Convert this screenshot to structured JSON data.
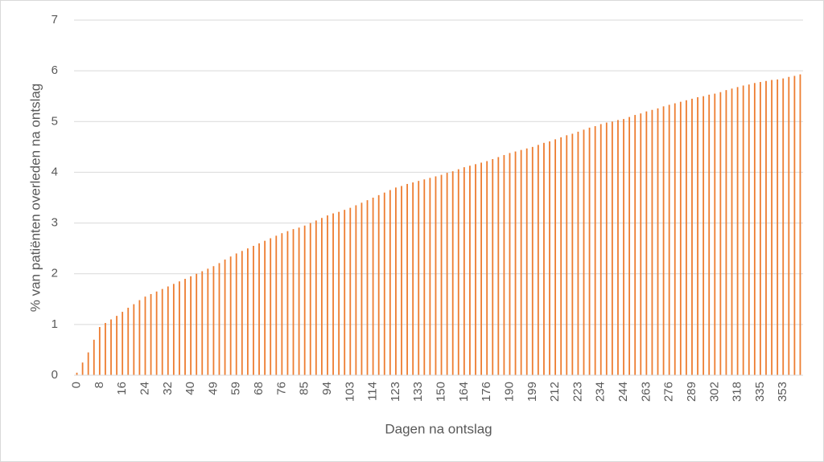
{
  "chart_data": {
    "type": "bar",
    "x_label": "Dagen na ontslag",
    "y_label": "% van patiënten overleden na ontslag",
    "color": "#ed7d31",
    "grid": true,
    "ylim": [
      0,
      7
    ],
    "yticks": [
      0,
      1,
      2,
      3,
      4,
      5,
      6,
      7
    ],
    "categories": [
      "0",
      null,
      null,
      null,
      "8",
      null,
      null,
      null,
      "16",
      null,
      null,
      null,
      "24",
      null,
      null,
      null,
      "32",
      null,
      null,
      null,
      "40",
      null,
      null,
      null,
      "49",
      null,
      null,
      null,
      "59",
      null,
      null,
      null,
      "68",
      null,
      null,
      null,
      "76",
      null,
      null,
      null,
      "85",
      null,
      null,
      null,
      "94",
      null,
      null,
      null,
      "103",
      null,
      null,
      null,
      "114",
      null,
      null,
      null,
      "123",
      null,
      null,
      null,
      "133",
      null,
      null,
      null,
      "150",
      null,
      null,
      null,
      "164",
      null,
      null,
      null,
      "176",
      null,
      null,
      null,
      "190",
      null,
      null,
      null,
      "199",
      null,
      null,
      null,
      "212",
      null,
      null,
      null,
      "223",
      null,
      null,
      null,
      "234",
      null,
      null,
      null,
      "244",
      null,
      null,
      null,
      "263",
      null,
      null,
      null,
      "276",
      null,
      null,
      null,
      "289",
      null,
      null,
      null,
      "302",
      null,
      null,
      null,
      "318",
      null,
      null,
      null,
      "335",
      null,
      null,
      null,
      "353",
      null,
      null,
      null
    ],
    "values": [
      0.05,
      0.25,
      0.45,
      0.7,
      0.95,
      1.03,
      1.1,
      1.17,
      1.25,
      1.33,
      1.4,
      1.48,
      1.55,
      1.6,
      1.65,
      1.7,
      1.75,
      1.8,
      1.85,
      1.9,
      1.95,
      2.0,
      2.05,
      2.1,
      2.15,
      2.21,
      2.28,
      2.34,
      2.4,
      2.45,
      2.5,
      2.55,
      2.6,
      2.65,
      2.7,
      2.75,
      2.8,
      2.84,
      2.88,
      2.91,
      2.95,
      3.0,
      3.05,
      3.1,
      3.15,
      3.19,
      3.22,
      3.26,
      3.3,
      3.35,
      3.4,
      3.45,
      3.5,
      3.55,
      3.6,
      3.65,
      3.7,
      3.73,
      3.77,
      3.8,
      3.83,
      3.86,
      3.89,
      3.92,
      3.95,
      3.99,
      4.02,
      4.06,
      4.1,
      4.13,
      4.16,
      4.19,
      4.22,
      4.26,
      4.3,
      4.34,
      4.38,
      4.41,
      4.44,
      4.47,
      4.5,
      4.54,
      4.58,
      4.61,
      4.65,
      4.69,
      4.73,
      4.76,
      4.8,
      4.84,
      4.88,
      4.91,
      4.95,
      4.98,
      5.0,
      5.03,
      5.05,
      5.09,
      5.13,
      5.16,
      5.2,
      5.23,
      5.26,
      5.3,
      5.33,
      5.36,
      5.39,
      5.42,
      5.45,
      5.48,
      5.5,
      5.53,
      5.55,
      5.58,
      5.62,
      5.65,
      5.68,
      5.71,
      5.73,
      5.76,
      5.78,
      5.8,
      5.82,
      5.83,
      5.85,
      5.88,
      5.9,
      5.93
    ]
  }
}
